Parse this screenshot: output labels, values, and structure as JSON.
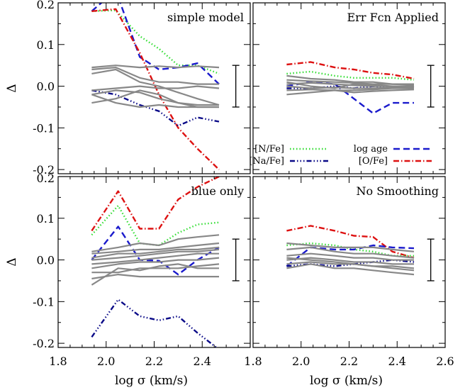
{
  "chart_data": [
    {
      "type": "line",
      "title": "simple model",
      "xlabel": "",
      "ylabel": "Δ",
      "xlim": [
        1.8,
        2.6
      ],
      "ylim": [
        -0.21,
        0.2
      ],
      "xticks": [
        "",
        "",
        "",
        "",
        ""
      ],
      "yticks": [
        "0.2",
        "0.1",
        "0.0",
        "-0.1",
        "-0.2"
      ],
      "error_bar": {
        "x": 2.54,
        "low": -0.05,
        "high": 0.05
      },
      "series": [
        {
          "style": "nfe",
          "x": [
            1.94,
            2.04,
            2.14,
            2.22,
            2.3,
            2.38,
            2.47
          ],
          "values": [
            0.18,
            0.182,
            0.12,
            0.09,
            0.05,
            0.05,
            0.03
          ]
        },
        {
          "style": "logage",
          "x": [
            1.94,
            2.04,
            2.14,
            2.22,
            2.3,
            2.38,
            2.47
          ],
          "values": [
            0.18,
            0.23,
            0.07,
            0.04,
            0.045,
            0.055,
            0.005
          ]
        },
        {
          "style": "ofe",
          "x": [
            1.94,
            2.04,
            2.14,
            2.22,
            2.3,
            2.38,
            2.47
          ],
          "values": [
            0.18,
            0.185,
            0.08,
            -0.02,
            -0.1,
            -0.15,
            -0.2
          ]
        },
        {
          "style": "nafe",
          "x": [
            1.94,
            2.04,
            2.14,
            2.22,
            2.3,
            2.38,
            2.47
          ],
          "values": [
            -0.01,
            -0.02,
            -0.045,
            -0.06,
            -0.095,
            -0.075,
            -0.085
          ]
        },
        {
          "style": "grey",
          "x": [
            1.94,
            2.04,
            2.14,
            2.22,
            2.3,
            2.38,
            2.47
          ],
          "values": [
            0.045,
            0.05,
            0.045,
            0.048,
            0.045,
            0.048,
            0.045
          ]
        },
        {
          "style": "grey",
          "x": [
            1.94,
            2.04,
            2.14,
            2.22,
            2.3,
            2.38,
            2.47
          ],
          "values": [
            0.04,
            0.045,
            0.02,
            0.01,
            0.01,
            0.005,
            0.005
          ]
        },
        {
          "style": "grey",
          "x": [
            1.94,
            2.04,
            2.14,
            2.22,
            2.3,
            2.38,
            2.47
          ],
          "values": [
            0.03,
            0.04,
            0.01,
            0.0,
            -0.015,
            -0.03,
            -0.045
          ]
        },
        {
          "style": "grey",
          "x": [
            1.94,
            2.04,
            2.14,
            2.22,
            2.3,
            2.38,
            2.47
          ],
          "values": [
            -0.01,
            -0.005,
            0.0,
            -0.005,
            -0.005,
            0.0,
            -0.005
          ]
        },
        {
          "style": "grey",
          "x": [
            1.94,
            2.04,
            2.14,
            2.22,
            2.3,
            2.38,
            2.47
          ],
          "values": [
            -0.04,
            -0.03,
            -0.01,
            -0.02,
            -0.04,
            -0.05,
            -0.05
          ]
        },
        {
          "style": "grey",
          "x": [
            1.94,
            2.04,
            2.14,
            2.22,
            2.3,
            2.38,
            2.47
          ],
          "values": [
            -0.02,
            -0.01,
            -0.015,
            -0.03,
            -0.04,
            -0.045,
            -0.045
          ]
        },
        {
          "style": "grey",
          "x": [
            1.94,
            2.04,
            2.14,
            2.22,
            2.3,
            2.38,
            2.47
          ],
          "values": [
            -0.02,
            -0.04,
            -0.05,
            -0.045,
            -0.05,
            -0.05,
            -0.05
          ]
        }
      ]
    },
    {
      "type": "line",
      "title": "Err Fcn Applied",
      "xlabel": "",
      "ylabel": "",
      "xlim": [
        1.8,
        2.6
      ],
      "ylim": [
        -0.21,
        0.2
      ],
      "xticks": [
        "",
        "",
        "",
        "",
        ""
      ],
      "yticks": [
        "",
        "",
        "",
        "",
        ""
      ],
      "error_bar": {
        "x": 2.54,
        "low": -0.05,
        "high": 0.05
      },
      "legend": [
        {
          "label": "[N/Fe]",
          "style": "nfe"
        },
        {
          "label": "log age",
          "style": "logage"
        },
        {
          "label": "[Na/Fe]",
          "style": "nafe"
        },
        {
          "label": "[O/Fe]",
          "style": "ofe"
        }
      ],
      "series": [
        {
          "style": "ofe",
          "x": [
            1.94,
            2.04,
            2.14,
            2.22,
            2.3,
            2.38,
            2.47
          ],
          "values": [
            0.052,
            0.058,
            0.045,
            0.04,
            0.032,
            0.028,
            0.018
          ]
        },
        {
          "style": "nfe",
          "x": [
            1.94,
            2.04,
            2.14,
            2.22,
            2.3,
            2.38,
            2.47
          ],
          "values": [
            0.03,
            0.035,
            0.025,
            0.02,
            0.02,
            0.02,
            0.015
          ]
        },
        {
          "style": "logage",
          "x": [
            1.94,
            2.04,
            2.14,
            2.22,
            2.3,
            2.38,
            2.47
          ],
          "values": [
            0.0,
            0.01,
            0.005,
            -0.03,
            -0.065,
            -0.04,
            -0.04
          ]
        },
        {
          "style": "nafe",
          "x": [
            1.94,
            2.04,
            2.14,
            2.22,
            2.3,
            2.38,
            2.47
          ],
          "values": [
            -0.005,
            -0.005,
            0.0,
            -0.005,
            0.0,
            -0.005,
            0.0
          ]
        },
        {
          "style": "grey",
          "x": [
            1.94,
            2.04,
            2.14,
            2.22,
            2.3,
            2.38,
            2.47
          ],
          "values": [
            0.025,
            0.018,
            0.015,
            0.01,
            0.01,
            0.005,
            0.005
          ]
        },
        {
          "style": "grey",
          "x": [
            1.94,
            2.04,
            2.14,
            2.22,
            2.3,
            2.38,
            2.47
          ],
          "values": [
            0.015,
            0.012,
            0.01,
            0.008,
            0.005,
            0.005,
            0.003
          ]
        },
        {
          "style": "grey",
          "x": [
            1.94,
            2.04,
            2.14,
            2.22,
            2.3,
            2.38,
            2.47
          ],
          "values": [
            0.005,
            0.008,
            0.005,
            0.002,
            0.0,
            0.0,
            0.0
          ]
        },
        {
          "style": "grey",
          "x": [
            1.94,
            2.04,
            2.14,
            2.22,
            2.3,
            2.38,
            2.47
          ],
          "values": [
            0.0,
            -0.005,
            -0.003,
            -0.005,
            -0.005,
            -0.003,
            0.0
          ]
        },
        {
          "style": "grey",
          "x": [
            1.94,
            2.04,
            2.14,
            2.22,
            2.3,
            2.38,
            2.47
          ],
          "values": [
            -0.01,
            -0.008,
            -0.01,
            -0.01,
            -0.008,
            -0.005,
            -0.005
          ]
        },
        {
          "style": "grey",
          "x": [
            1.94,
            2.04,
            2.14,
            2.22,
            2.3,
            2.38,
            2.47
          ],
          "values": [
            -0.02,
            -0.015,
            -0.01,
            -0.015,
            -0.012,
            -0.01,
            -0.008
          ]
        },
        {
          "style": "grey",
          "x": [
            1.94,
            2.04,
            2.14,
            2.22,
            2.3,
            2.38,
            2.47
          ],
          "values": [
            0.01,
            0.0,
            -0.005,
            0.005,
            0.003,
            0.0,
            -0.003
          ]
        }
      ]
    },
    {
      "type": "line",
      "title": "blue only",
      "xlabel": "log σ (km/s)",
      "ylabel": "Δ",
      "xlim": [
        1.8,
        2.6
      ],
      "ylim": [
        -0.21,
        0.2
      ],
      "xticks": [
        "1.8",
        "2.0",
        "2.2",
        "2.4",
        ""
      ],
      "yticks": [
        "0.2",
        "0.1",
        "0.0",
        "-0.1",
        "-0.2"
      ],
      "error_bar": {
        "x": 2.54,
        "low": -0.05,
        "high": 0.05
      },
      "series": [
        {
          "style": "ofe",
          "x": [
            1.94,
            2.05,
            2.14,
            2.22,
            2.3,
            2.38,
            2.47
          ],
          "values": [
            0.07,
            0.165,
            0.075,
            0.075,
            0.145,
            0.175,
            0.2
          ]
        },
        {
          "style": "nfe",
          "x": [
            1.94,
            2.05,
            2.14,
            2.22,
            2.3,
            2.38,
            2.47
          ],
          "values": [
            0.06,
            0.13,
            0.04,
            0.035,
            0.065,
            0.085,
            0.09
          ]
        },
        {
          "style": "logage",
          "x": [
            1.94,
            2.05,
            2.14,
            2.22,
            2.3,
            2.38,
            2.47
          ],
          "values": [
            0.0,
            0.08,
            0.0,
            -0.002,
            -0.035,
            0.0,
            0.03
          ]
        },
        {
          "style": "nafe",
          "x": [
            1.94,
            2.05,
            2.14,
            2.22,
            2.3,
            2.38,
            2.47
          ],
          "values": [
            -0.185,
            -0.095,
            -0.135,
            -0.145,
            -0.135,
            -0.175,
            -0.215
          ]
        },
        {
          "style": "grey",
          "x": [
            1.94,
            2.05,
            2.14,
            2.22,
            2.3,
            2.38,
            2.47
          ],
          "values": [
            0.02,
            0.03,
            0.04,
            0.035,
            0.05,
            0.055,
            0.06
          ]
        },
        {
          "style": "grey",
          "x": [
            1.94,
            2.05,
            2.14,
            2.22,
            2.3,
            2.38,
            2.47
          ],
          "values": [
            0.015,
            0.02,
            0.025,
            0.025,
            0.03,
            0.035,
            0.04
          ]
        },
        {
          "style": "grey",
          "x": [
            1.94,
            2.05,
            2.14,
            2.22,
            2.3,
            2.38,
            2.47
          ],
          "values": [
            0.005,
            0.015,
            0.015,
            0.02,
            0.025,
            0.025,
            0.03
          ]
        },
        {
          "style": "grey",
          "x": [
            1.94,
            2.05,
            2.14,
            2.22,
            2.3,
            2.38,
            2.47
          ],
          "values": [
            0.0,
            0.005,
            0.01,
            0.015,
            0.02,
            0.02,
            0.025
          ]
        },
        {
          "style": "grey",
          "x": [
            1.94,
            2.05,
            2.14,
            2.22,
            2.3,
            2.38,
            2.47
          ],
          "values": [
            -0.01,
            -0.005,
            0.0,
            0.005,
            0.01,
            0.015,
            0.015
          ]
        },
        {
          "style": "grey",
          "x": [
            1.94,
            2.05,
            2.14,
            2.22,
            2.3,
            2.38,
            2.47
          ],
          "values": [
            -0.02,
            -0.01,
            -0.005,
            -0.005,
            0.0,
            0.0,
            0.005
          ]
        },
        {
          "style": "grey",
          "x": [
            1.94,
            2.05,
            2.14,
            2.22,
            2.3,
            2.38,
            2.47
          ],
          "values": [
            -0.03,
            -0.03,
            -0.02,
            -0.02,
            -0.02,
            -0.015,
            -0.01
          ]
        },
        {
          "style": "grey",
          "x": [
            1.94,
            2.05,
            2.14,
            2.22,
            2.3,
            2.38,
            2.47
          ],
          "values": [
            -0.045,
            -0.035,
            -0.04,
            -0.04,
            -0.04,
            -0.04,
            -0.04
          ]
        },
        {
          "style": "grey",
          "x": [
            1.94,
            2.05,
            2.14,
            2.22,
            2.3,
            2.38,
            2.47
          ],
          "values": [
            -0.06,
            -0.02,
            -0.025,
            -0.015,
            -0.01,
            -0.02,
            -0.02
          ]
        }
      ]
    },
    {
      "type": "line",
      "title": "No Smoothing",
      "xlabel": "log σ (km/s)",
      "ylabel": "",
      "xlim": [
        1.8,
        2.6
      ],
      "ylim": [
        -0.21,
        0.2
      ],
      "xticks": [
        "1.8",
        "2.0",
        "2.2",
        "2.4",
        "2.6"
      ],
      "yticks": [
        "",
        "",
        "",
        "",
        ""
      ],
      "error_bar": {
        "x": 2.54,
        "low": -0.05,
        "high": 0.05
      },
      "series": [
        {
          "style": "ofe",
          "x": [
            1.94,
            2.04,
            2.14,
            2.22,
            2.3,
            2.38,
            2.47
          ],
          "values": [
            0.07,
            0.082,
            0.07,
            0.058,
            0.055,
            0.02,
            0.005
          ]
        },
        {
          "style": "nfe",
          "x": [
            1.94,
            2.04,
            2.14,
            2.22,
            2.3,
            2.38,
            2.47
          ],
          "values": [
            0.035,
            0.04,
            0.035,
            0.025,
            0.02,
            0.01,
            0.01
          ]
        },
        {
          "style": "logage",
          "x": [
            1.94,
            2.04,
            2.14,
            2.22,
            2.3,
            2.38,
            2.47
          ],
          "values": [
            -0.015,
            0.03,
            0.025,
            0.025,
            0.035,
            0.03,
            0.028
          ]
        },
        {
          "style": "nafe",
          "x": [
            1.94,
            2.04,
            2.14,
            2.22,
            2.3,
            2.38,
            2.47
          ],
          "values": [
            -0.015,
            -0.01,
            -0.015,
            -0.01,
            -0.005,
            0.0,
            -0.005
          ]
        },
        {
          "style": "grey",
          "x": [
            1.94,
            2.04,
            2.14,
            2.22,
            2.3,
            2.38,
            2.47
          ],
          "values": [
            0.04,
            0.035,
            0.03,
            0.03,
            0.03,
            0.025,
            0.02
          ]
        },
        {
          "style": "grey",
          "x": [
            1.94,
            2.04,
            2.14,
            2.22,
            2.3,
            2.38,
            2.47
          ],
          "values": [
            0.025,
            0.03,
            0.02,
            0.015,
            0.015,
            0.01,
            0.005
          ]
        },
        {
          "style": "grey",
          "x": [
            1.94,
            2.04,
            2.14,
            2.22,
            2.3,
            2.38,
            2.47
          ],
          "values": [
            0.01,
            0.015,
            0.01,
            0.005,
            0.005,
            0.0,
            0.0
          ]
        },
        {
          "style": "grey",
          "x": [
            1.94,
            2.04,
            2.14,
            2.22,
            2.3,
            2.38,
            2.47
          ],
          "values": [
            0.0,
            0.005,
            0.0,
            -0.005,
            -0.005,
            -0.01,
            -0.01
          ]
        },
        {
          "style": "grey",
          "x": [
            1.94,
            2.04,
            2.14,
            2.22,
            2.3,
            2.38,
            2.47
          ],
          "values": [
            -0.01,
            -0.005,
            -0.01,
            -0.01,
            -0.015,
            -0.015,
            -0.02
          ]
        },
        {
          "style": "grey",
          "x": [
            1.94,
            2.04,
            2.14,
            2.22,
            2.3,
            2.38,
            2.47
          ],
          "values": [
            -0.02,
            -0.01,
            -0.02,
            -0.02,
            -0.025,
            -0.03,
            -0.035
          ]
        },
        {
          "style": "grey",
          "x": [
            1.94,
            2.04,
            2.14,
            2.22,
            2.3,
            2.38,
            2.47
          ],
          "values": [
            0.005,
            0.0,
            -0.005,
            -0.01,
            -0.015,
            -0.02,
            -0.025
          ]
        }
      ]
    }
  ],
  "styles": {
    "nfe": {
      "color": "#33dd33",
      "dash": "1.5 3"
    },
    "logage": {
      "color": "#1a1acc",
      "dash": "9 5"
    },
    "nafe": {
      "color": "#0a0a88",
      "dash": "7 3 1.5 3 1.5 3 1.5 3"
    },
    "ofe": {
      "color": "#dd1111",
      "dash": "8 3 1.5 3"
    },
    "grey": {
      "color": "#888888",
      "dash": ""
    }
  }
}
